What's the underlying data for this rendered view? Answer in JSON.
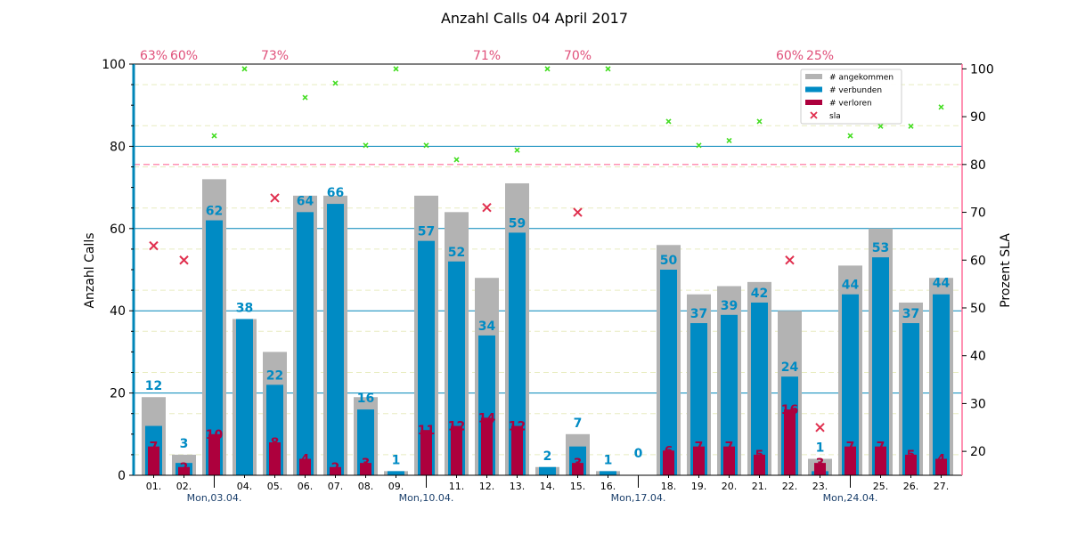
{
  "chart_data": {
    "type": "bar",
    "title": "Anzahl Calls 04 April 2017",
    "ylabel": "Anzahl Calls",
    "y2label": "Prozent SLA",
    "ylim": [
      0,
      100
    ],
    "y2lim": [
      15,
      101
    ],
    "yticks": [
      "0",
      "20",
      "40",
      "60",
      "80",
      "100"
    ],
    "y2ticks": [
      "20",
      "30",
      "40",
      "50",
      "60",
      "70",
      "80",
      "90",
      "100"
    ],
    "sla_target": 80,
    "categories": [
      "01.",
      "02.",
      "03.",
      "04.",
      "05.",
      "06.",
      "07.",
      "08.",
      "09.",
      "10.",
      "11.",
      "12.",
      "13.",
      "14.",
      "15.",
      "16.",
      "17.",
      "18.",
      "19.",
      "20.",
      "21.",
      "22.",
      "23.",
      "24.",
      "25.",
      "26.",
      "27."
    ],
    "tick_labels": [
      "01.",
      "02.",
      "",
      "04.",
      "05.",
      "06.",
      "07.",
      "08.",
      "09.",
      "",
      "11.",
      "12.",
      "13.",
      "14.",
      "15.",
      "16.",
      "",
      "18.",
      "19.",
      "20.",
      "21.",
      "22.",
      "23.",
      "",
      "25.",
      "26.",
      "27."
    ],
    "week_labels": [
      {
        "index": 2,
        "label": "Mon,03.04."
      },
      {
        "index": 9,
        "label": "Mon,10.04."
      },
      {
        "index": 16,
        "label": "Mon,17.04."
      },
      {
        "index": 23,
        "label": "Mon,24.04."
      }
    ],
    "series": [
      {
        "name": "# angekommen",
        "color": "#b3b3b3",
        "values": [
          19,
          5,
          72,
          38,
          30,
          68,
          68,
          19,
          1,
          68,
          64,
          48,
          71,
          2,
          10,
          1,
          0,
          56,
          44,
          46,
          47,
          40,
          4,
          51,
          60,
          42,
          48
        ]
      },
      {
        "name": "# verbunden",
        "color": "#008bc4",
        "values": [
          12,
          3,
          62,
          38,
          22,
          64,
          66,
          16,
          1,
          57,
          52,
          34,
          59,
          2,
          7,
          1,
          0,
          50,
          37,
          39,
          42,
          24,
          1,
          44,
          53,
          37,
          44
        ]
      },
      {
        "name": "# verloren",
        "color": "#ad003d",
        "values": [
          7,
          2,
          10,
          0,
          8,
          4,
          2,
          3,
          0,
          11,
          12,
          14,
          12,
          0,
          3,
          0,
          0,
          6,
          7,
          7,
          5,
          16,
          3,
          7,
          7,
          5,
          4
        ]
      }
    ],
    "verbunden_labels": [
      "12",
      "3",
      "62",
      "38",
      "22",
      "64",
      "66",
      "16",
      "1",
      "57",
      "52",
      "34",
      "59",
      "2",
      "7",
      "1",
      "0",
      "50",
      "37",
      "39",
      "42",
      "24",
      "1",
      "44",
      "53",
      "37",
      "44"
    ],
    "verloren_labels": [
      "7",
      "2",
      "10",
      "",
      "8",
      "4",
      "2",
      "3",
      "",
      "11",
      "12",
      "14",
      "12",
      "",
      "3",
      "",
      "",
      "6",
      "7",
      "7",
      "5",
      "16",
      "3",
      "7",
      "7",
      "5",
      "4"
    ],
    "sla_series": {
      "name": "sla",
      "color": "#e0304f",
      "marker": "x",
      "points": [
        {
          "index": 0,
          "value": 63
        },
        {
          "index": 1,
          "value": 60
        },
        {
          "index": 4,
          "value": 73
        },
        {
          "index": 11,
          "value": 71
        },
        {
          "index": 14,
          "value": 70
        },
        {
          "index": 21,
          "value": 60
        },
        {
          "index": 22,
          "value": 25
        }
      ]
    },
    "sla_high_series": {
      "color": "#44dd22",
      "points": [
        {
          "index": 2,
          "value": 86
        },
        {
          "index": 3,
          "value": 100
        },
        {
          "index": 5,
          "value": 94
        },
        {
          "index": 6,
          "value": 97
        },
        {
          "index": 7,
          "value": 84
        },
        {
          "index": 8,
          "value": 100
        },
        {
          "index": 9,
          "value": 84
        },
        {
          "index": 10,
          "value": 81
        },
        {
          "index": 12,
          "value": 83
        },
        {
          "index": 13,
          "value": 100
        },
        {
          "index": 15,
          "value": 100
        },
        {
          "index": 17,
          "value": 89
        },
        {
          "index": 18,
          "value": 84
        },
        {
          "index": 19,
          "value": 85
        },
        {
          "index": 20,
          "value": 89
        },
        {
          "index": 23,
          "value": 86
        },
        {
          "index": 24,
          "value": 88
        },
        {
          "index": 25,
          "value": 88
        },
        {
          "index": 26,
          "value": 92
        }
      ]
    },
    "sla_top_labels": [
      {
        "index": 0,
        "label": "63%"
      },
      {
        "index": 1,
        "label": "60%"
      },
      {
        "index": 4,
        "label": "73%"
      },
      {
        "index": 11,
        "label": "71%"
      },
      {
        "index": 14,
        "label": "70%"
      },
      {
        "index": 21,
        "label": "60%"
      },
      {
        "index": 22,
        "label": "25%"
      }
    ],
    "legend": {
      "position": "top-right",
      "items": [
        {
          "label": "# angekommen",
          "color": "#b3b3b3",
          "kind": "bar"
        },
        {
          "label": "# verbunden",
          "color": "#008bc4",
          "kind": "bar"
        },
        {
          "label": "# verloren",
          "color": "#ad003d",
          "kind": "bar"
        },
        {
          "label": "sla",
          "color": "#e0304f",
          "kind": "x"
        }
      ]
    },
    "grid": true
  }
}
